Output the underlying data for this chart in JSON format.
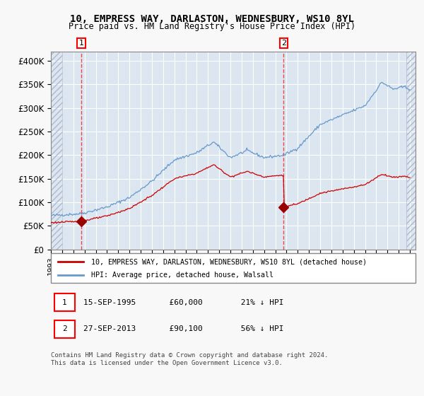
{
  "title1": "10, EMPRESS WAY, DARLASTON, WEDNESBURY, WS10 8YL",
  "title2": "Price paid vs. HM Land Registry's House Price Index (HPI)",
  "ylabel_ticks": [
    "£0",
    "£50K",
    "£100K",
    "£150K",
    "£200K",
    "£250K",
    "£300K",
    "£350K",
    "£400K"
  ],
  "ytick_vals": [
    0,
    50000,
    100000,
    150000,
    200000,
    250000,
    300000,
    350000,
    400000
  ],
  "ylim": [
    0,
    420000
  ],
  "xlim_start": 1993.0,
  "xlim_end": 2025.5,
  "purchase1_date": 1995.71,
  "purchase1_price": 60000,
  "purchase2_date": 2013.74,
  "purchase2_price": 90100,
  "legend_line1": "10, EMPRESS WAY, DARLASTON, WEDNESBURY, WS10 8YL (detached house)",
  "legend_line2": "HPI: Average price, detached house, Walsall",
  "footnote": "Contains HM Land Registry data © Crown copyright and database right 2024.\nThis data is licensed under the Open Government Licence v3.0.",
  "hatch_color": "#c8d0e0",
  "bg_color": "#dce6f0",
  "grid_color": "#ffffff",
  "hpi_color": "#6699cc",
  "price_color": "#cc0000",
  "marker_color": "#990000"
}
